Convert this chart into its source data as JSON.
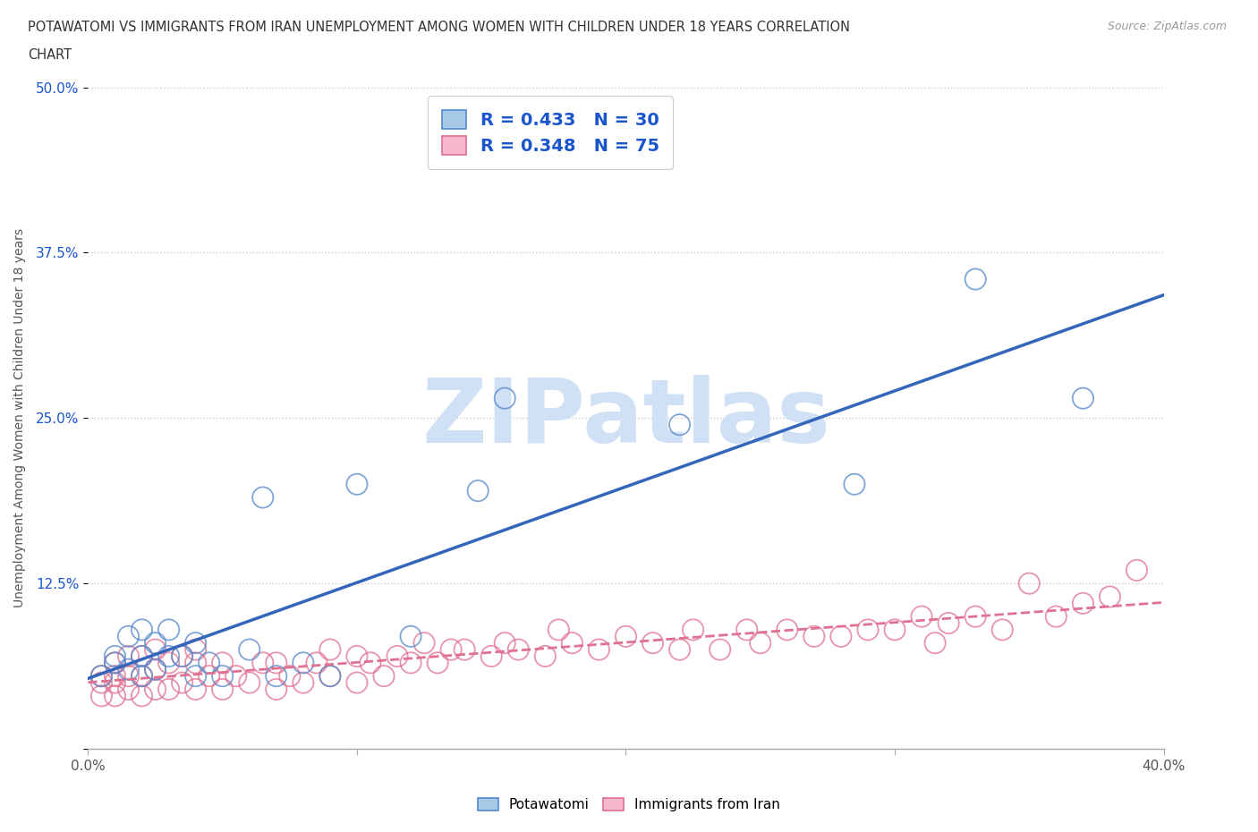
{
  "title_line1": "POTAWATOMI VS IMMIGRANTS FROM IRAN UNEMPLOYMENT AMONG WOMEN WITH CHILDREN UNDER 18 YEARS CORRELATION",
  "title_line2": "CHART",
  "source": "Source: ZipAtlas.com",
  "ylabel": "Unemployment Among Women with Children Under 18 years",
  "xlim": [
    0.0,
    0.4
  ],
  "ylim": [
    0.0,
    0.5
  ],
  "xticks": [
    0.0,
    0.1,
    0.2,
    0.3,
    0.4
  ],
  "xtick_labels": [
    "0.0%",
    "",
    "",
    "",
    "40.0%"
  ],
  "ytick_labels": [
    "",
    "12.5%",
    "25.0%",
    "37.5%",
    "50.0%"
  ],
  "yticks": [
    0.0,
    0.125,
    0.25,
    0.375,
    0.5
  ],
  "R_blue": 0.433,
  "N_blue": 30,
  "R_pink": 0.348,
  "N_pink": 75,
  "blue_color": "#a8c8e8",
  "blue_edge_color": "#5588cc",
  "pink_color": "#f5b8cc",
  "pink_edge_color": "#e07090",
  "blue_line_color": "#3366bb",
  "pink_line_color": "#e07090",
  "legend_text_color": "#1a55cc",
  "watermark": "ZIPatlas",
  "watermark_color": "#d0e0f5",
  "blue_scatter_x": [
    0.005,
    0.01,
    0.01,
    0.015,
    0.015,
    0.02,
    0.02,
    0.02,
    0.025,
    0.025,
    0.03,
    0.03,
    0.035,
    0.04,
    0.04,
    0.045,
    0.05,
    0.06,
    0.065,
    0.07,
    0.08,
    0.09,
    0.1,
    0.12,
    0.145,
    0.155,
    0.22,
    0.285,
    0.33,
    0.37
  ],
  "blue_scatter_y": [
    0.055,
    0.065,
    0.07,
    0.06,
    0.085,
    0.055,
    0.07,
    0.09,
    0.06,
    0.08,
    0.07,
    0.09,
    0.07,
    0.055,
    0.08,
    0.065,
    0.055,
    0.075,
    0.19,
    0.055,
    0.065,
    0.055,
    0.2,
    0.085,
    0.195,
    0.265,
    0.245,
    0.2,
    0.355,
    0.265
  ],
  "pink_scatter_x": [
    0.005,
    0.005,
    0.005,
    0.01,
    0.01,
    0.01,
    0.01,
    0.015,
    0.015,
    0.015,
    0.02,
    0.02,
    0.02,
    0.025,
    0.025,
    0.025,
    0.03,
    0.03,
    0.035,
    0.035,
    0.04,
    0.04,
    0.04,
    0.045,
    0.05,
    0.05,
    0.055,
    0.06,
    0.065,
    0.07,
    0.07,
    0.075,
    0.08,
    0.085,
    0.09,
    0.09,
    0.1,
    0.1,
    0.105,
    0.11,
    0.115,
    0.12,
    0.125,
    0.13,
    0.135,
    0.14,
    0.15,
    0.155,
    0.16,
    0.17,
    0.175,
    0.18,
    0.19,
    0.2,
    0.21,
    0.22,
    0.225,
    0.235,
    0.245,
    0.25,
    0.26,
    0.27,
    0.28,
    0.29,
    0.3,
    0.31,
    0.315,
    0.32,
    0.33,
    0.34,
    0.35,
    0.36,
    0.37,
    0.38,
    0.39
  ],
  "pink_scatter_y": [
    0.04,
    0.05,
    0.055,
    0.04,
    0.05,
    0.055,
    0.065,
    0.045,
    0.055,
    0.07,
    0.04,
    0.055,
    0.07,
    0.045,
    0.06,
    0.075,
    0.045,
    0.065,
    0.05,
    0.07,
    0.045,
    0.065,
    0.075,
    0.055,
    0.045,
    0.065,
    0.055,
    0.05,
    0.065,
    0.045,
    0.065,
    0.055,
    0.05,
    0.065,
    0.055,
    0.075,
    0.05,
    0.07,
    0.065,
    0.055,
    0.07,
    0.065,
    0.08,
    0.065,
    0.075,
    0.075,
    0.07,
    0.08,
    0.075,
    0.07,
    0.09,
    0.08,
    0.075,
    0.085,
    0.08,
    0.075,
    0.09,
    0.075,
    0.09,
    0.08,
    0.09,
    0.085,
    0.085,
    0.09,
    0.09,
    0.1,
    0.08,
    0.095,
    0.1,
    0.09,
    0.125,
    0.1,
    0.11,
    0.115,
    0.135
  ],
  "background_color": "#ffffff",
  "grid_color": "#cccccc"
}
